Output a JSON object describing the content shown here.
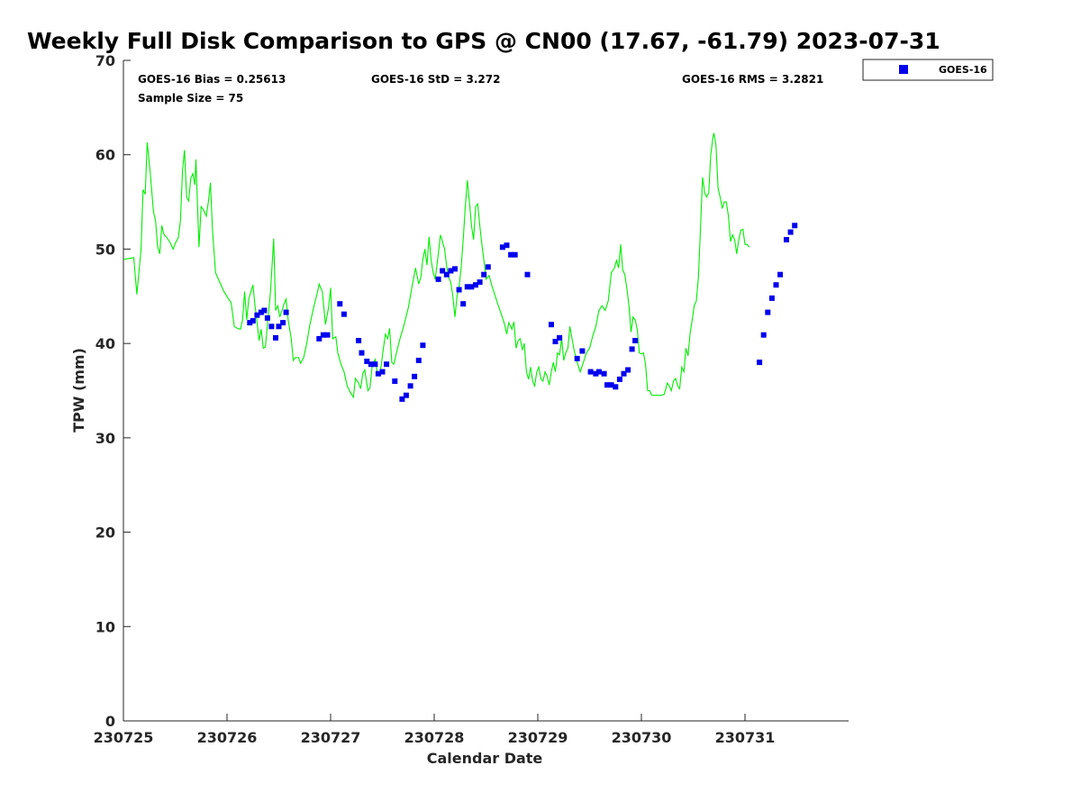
{
  "chart_data": {
    "type": "scatter",
    "title": "Weekly Full Disk Comparison to GPS @ CN00 (17.67, -61.79) 2023-07-31",
    "xlabel": "Calendar Date",
    "ylabel": "TPW (mm)",
    "xlim": [
      0,
      7
    ],
    "ylim": [
      0,
      70
    ],
    "x_ticks": [
      {
        "v": 0,
        "label": "230725"
      },
      {
        "v": 1,
        "label": "230726"
      },
      {
        "v": 2,
        "label": "230727"
      },
      {
        "v": 3,
        "label": "230728"
      },
      {
        "v": 4,
        "label": "230729"
      },
      {
        "v": 5,
        "label": "230730"
      },
      {
        "v": 6,
        "label": "230731"
      }
    ],
    "y_ticks": [
      {
        "v": 0,
        "label": "0"
      },
      {
        "v": 10,
        "label": "10"
      },
      {
        "v": 20,
        "label": "20"
      },
      {
        "v": 30,
        "label": "30"
      },
      {
        "v": 40,
        "label": "40"
      },
      {
        "v": 50,
        "label": "50"
      },
      {
        "v": 60,
        "label": "60"
      },
      {
        "v": 70,
        "label": "70"
      }
    ],
    "stats": {
      "bias": "GOES-16 Bias = 0.25613",
      "std": "GOES-16 StD = 3.272",
      "rms": "GOES-16 RMS = 3.2821",
      "sample": "Sample Size = 75"
    },
    "legend": {
      "entry": "GOES-16",
      "placement": "top-right outside"
    },
    "colors": {
      "gps_line": "#00ee00",
      "goes_markers": "#0000ee"
    },
    "grid": false,
    "gps_line": [
      [
        0.0,
        48.9
      ],
      [
        0.1,
        49.1
      ],
      [
        0.13,
        45.2
      ],
      [
        0.17,
        50.0
      ],
      [
        0.19,
        56.3
      ],
      [
        0.21,
        55.8
      ],
      [
        0.23,
        61.3
      ],
      [
        0.26,
        58.0
      ],
      [
        0.29,
        54.0
      ],
      [
        0.31,
        53.0
      ],
      [
        0.33,
        50.3
      ],
      [
        0.35,
        49.5
      ],
      [
        0.37,
        52.5
      ],
      [
        0.39,
        51.6
      ],
      [
        0.42,
        51.2
      ],
      [
        0.45,
        50.7
      ],
      [
        0.48,
        50.0
      ],
      [
        0.5,
        50.6
      ],
      [
        0.53,
        51.2
      ],
      [
        0.55,
        53.0
      ],
      [
        0.57,
        58.3
      ],
      [
        0.59,
        60.5
      ],
      [
        0.61,
        55.5
      ],
      [
        0.63,
        55.1
      ],
      [
        0.65,
        57.5
      ],
      [
        0.67,
        58.0
      ],
      [
        0.69,
        56.8
      ],
      [
        0.7,
        59.5
      ],
      [
        0.73,
        50.2
      ],
      [
        0.75,
        54.5
      ],
      [
        0.77,
        54.2
      ],
      [
        0.8,
        53.5
      ],
      [
        0.82,
        55.0
      ],
      [
        0.84,
        57.0
      ],
      [
        0.86,
        52.0
      ],
      [
        0.89,
        47.5
      ],
      [
        0.93,
        46.5
      ],
      [
        0.97,
        45.5
      ],
      [
        1.01,
        44.8
      ],
      [
        1.04,
        44.3
      ],
      [
        1.07,
        41.8
      ],
      [
        1.1,
        41.6
      ],
      [
        1.13,
        41.5
      ],
      [
        1.15,
        42.5
      ],
      [
        1.17,
        45.5
      ],
      [
        1.19,
        42.5
      ],
      [
        1.21,
        44.7
      ],
      [
        1.25,
        46.2
      ],
      [
        1.27,
        44.0
      ],
      [
        1.29,
        42.2
      ],
      [
        1.31,
        40.3
      ],
      [
        1.33,
        41.5
      ],
      [
        1.35,
        39.5
      ],
      [
        1.37,
        39.6
      ],
      [
        1.39,
        42.0
      ],
      [
        1.42,
        45.5
      ],
      [
        1.45,
        51.1
      ],
      [
        1.47,
        43.5
      ],
      [
        1.49,
        44.0
      ],
      [
        1.51,
        42.8
      ],
      [
        1.53,
        43.5
      ],
      [
        1.55,
        44.2
      ],
      [
        1.57,
        44.7
      ],
      [
        1.59,
        42.5
      ],
      [
        1.62,
        40.5
      ],
      [
        1.64,
        38.2
      ],
      [
        1.66,
        38.5
      ],
      [
        1.69,
        38.5
      ],
      [
        1.71,
        37.9
      ],
      [
        1.74,
        38.5
      ],
      [
        1.77,
        40.0
      ],
      [
        1.8,
        42.0
      ],
      [
        1.84,
        44.0
      ],
      [
        1.87,
        45.3
      ],
      [
        1.89,
        46.3
      ],
      [
        1.92,
        45.5
      ],
      [
        1.95,
        42.0
      ],
      [
        1.98,
        43.8
      ],
      [
        2.0,
        45.9
      ],
      [
        2.02,
        40.5
      ],
      [
        2.05,
        40.7
      ],
      [
        2.07,
        39.0
      ],
      [
        2.1,
        37.8
      ],
      [
        2.13,
        37.0
      ],
      [
        2.16,
        35.5
      ],
      [
        2.19,
        34.8
      ],
      [
        2.22,
        34.3
      ],
      [
        2.24,
        36.3
      ],
      [
        2.27,
        35.8
      ],
      [
        2.29,
        35.2
      ],
      [
        2.31,
        36.8
      ],
      [
        2.33,
        37.2
      ],
      [
        2.36,
        35.0
      ],
      [
        2.38,
        35.3
      ],
      [
        2.4,
        37.5
      ],
      [
        2.43,
        38.3
      ],
      [
        2.45,
        37.0
      ],
      [
        2.47,
        36.6
      ],
      [
        2.49,
        37.8
      ],
      [
        2.51,
        39.5
      ],
      [
        2.53,
        41.0
      ],
      [
        2.55,
        40.5
      ],
      [
        2.57,
        41.6
      ],
      [
        2.59,
        38.0
      ],
      [
        2.61,
        37.8
      ],
      [
        2.64,
        39.2
      ],
      [
        2.67,
        40.5
      ],
      [
        2.71,
        42.0
      ],
      [
        2.75,
        43.8
      ],
      [
        2.79,
        46.3
      ],
      [
        2.82,
        48.0
      ],
      [
        2.85,
        46.3
      ],
      [
        2.87,
        47.0
      ],
      [
        2.89,
        48.9
      ],
      [
        2.91,
        50.0
      ],
      [
        2.93,
        48.3
      ],
      [
        2.95,
        51.3
      ],
      [
        2.97,
        48.8
      ],
      [
        2.99,
        47.5
      ],
      [
        3.01,
        46.8
      ],
      [
        3.04,
        49.5
      ],
      [
        3.06,
        51.5
      ],
      [
        3.08,
        50.8
      ],
      [
        3.1,
        50.0
      ],
      [
        3.12,
        48.2
      ],
      [
        3.14,
        47.0
      ],
      [
        3.16,
        46.5
      ],
      [
        3.18,
        45.0
      ],
      [
        3.2,
        42.8
      ],
      [
        3.22,
        45.0
      ],
      [
        3.24,
        46.0
      ],
      [
        3.26,
        48.0
      ],
      [
        3.28,
        51.0
      ],
      [
        3.3,
        54.5
      ],
      [
        3.32,
        57.3
      ],
      [
        3.34,
        55.0
      ],
      [
        3.36,
        52.5
      ],
      [
        3.38,
        51.0
      ],
      [
        3.4,
        54.5
      ],
      [
        3.42,
        54.8
      ],
      [
        3.44,
        52.5
      ],
      [
        3.46,
        50.5
      ],
      [
        3.48,
        48.8
      ],
      [
        3.5,
        46.8
      ],
      [
        3.53,
        47.2
      ],
      [
        3.56,
        46.0
      ],
      [
        3.59,
        45.0
      ],
      [
        3.62,
        44.0
      ],
      [
        3.65,
        43.0
      ],
      [
        3.68,
        42.0
      ],
      [
        3.7,
        41.0
      ],
      [
        3.72,
        42.2
      ],
      [
        3.75,
        41.5
      ],
      [
        3.77,
        42.3
      ],
      [
        3.79,
        39.5
      ],
      [
        3.81,
        40.3
      ],
      [
        3.83,
        40.5
      ],
      [
        3.85,
        39.3
      ],
      [
        3.87,
        40.0
      ],
      [
        3.89,
        37.0
      ],
      [
        3.91,
        36.2
      ],
      [
        3.93,
        37.5
      ],
      [
        3.95,
        36.0
      ],
      [
        3.97,
        35.5
      ],
      [
        3.99,
        37.0
      ],
      [
        4.01,
        37.5
      ],
      [
        4.03,
        36.2
      ],
      [
        4.05,
        36.0
      ],
      [
        4.07,
        37.0
      ],
      [
        4.09,
        36.5
      ],
      [
        4.11,
        35.6
      ],
      [
        4.13,
        37.0
      ],
      [
        4.15,
        38.0
      ],
      [
        4.17,
        37.0
      ],
      [
        4.19,
        39.0
      ],
      [
        4.21,
        38.8
      ],
      [
        4.23,
        40.5
      ],
      [
        4.25,
        38.2
      ],
      [
        4.27,
        39.0
      ],
      [
        4.29,
        39.5
      ],
      [
        4.31,
        41.8
      ],
      [
        4.33,
        40.5
      ],
      [
        4.35,
        39.3
      ],
      [
        4.38,
        38.0
      ],
      [
        4.41,
        37.0
      ],
      [
        4.44,
        38.0
      ],
      [
        4.47,
        39.0
      ],
      [
        4.5,
        39.5
      ],
      [
        4.53,
        40.8
      ],
      [
        4.56,
        41.8
      ],
      [
        4.59,
        43.5
      ],
      [
        4.62,
        44.0
      ],
      [
        4.65,
        43.5
      ],
      [
        4.68,
        44.5
      ],
      [
        4.71,
        47.5
      ],
      [
        4.74,
        48.0
      ],
      [
        4.76,
        48.8
      ],
      [
        4.78,
        48.0
      ],
      [
        4.8,
        50.5
      ],
      [
        4.82,
        47.8
      ],
      [
        4.84,
        47.3
      ],
      [
        4.86,
        45.8
      ],
      [
        4.88,
        44.0
      ],
      [
        4.9,
        41.2
      ],
      [
        4.92,
        42.8
      ],
      [
        4.94,
        42.5
      ],
      [
        4.96,
        41.5
      ],
      [
        4.98,
        39.0
      ],
      [
        5.0,
        38.9
      ],
      [
        5.02,
        39.0
      ],
      [
        5.04,
        37.8
      ],
      [
        5.06,
        35.0
      ],
      [
        5.08,
        35.0
      ],
      [
        5.1,
        34.5
      ],
      [
        5.13,
        34.5
      ],
      [
        5.16,
        34.5
      ],
      [
        5.19,
        34.5
      ],
      [
        5.22,
        34.6
      ],
      [
        5.25,
        35.8
      ],
      [
        5.27,
        35.5
      ],
      [
        5.29,
        35.0
      ],
      [
        5.31,
        36.0
      ],
      [
        5.33,
        36.3
      ],
      [
        5.35,
        35.5
      ],
      [
        5.37,
        35.2
      ],
      [
        5.39,
        37.5
      ],
      [
        5.41,
        37.0
      ],
      [
        5.43,
        39.5
      ],
      [
        5.45,
        38.7
      ],
      [
        5.47,
        41.0
      ],
      [
        5.49,
        42.5
      ],
      [
        5.51,
        44.0
      ],
      [
        5.53,
        44.5
      ],
      [
        5.55,
        47.0
      ],
      [
        5.57,
        52.0
      ],
      [
        5.59,
        57.6
      ],
      [
        5.61,
        56.0
      ],
      [
        5.63,
        55.5
      ],
      [
        5.65,
        56.0
      ],
      [
        5.67,
        60.0
      ],
      [
        5.69,
        61.8
      ],
      [
        5.7,
        62.3
      ],
      [
        5.72,
        61.0
      ],
      [
        5.74,
        56.5
      ],
      [
        5.76,
        55.5
      ],
      [
        5.78,
        54.3
      ],
      [
        5.8,
        55.0
      ],
      [
        5.82,
        55.0
      ],
      [
        5.84,
        53.5
      ],
      [
        5.86,
        50.8
      ],
      [
        5.88,
        51.5
      ],
      [
        5.9,
        51.0
      ],
      [
        5.92,
        49.5
      ],
      [
        5.94,
        51.0
      ],
      [
        5.96,
        52.0
      ],
      [
        5.98,
        52.1
      ],
      [
        6.0,
        50.5
      ],
      [
        6.02,
        50.5
      ],
      [
        6.04,
        50.2
      ]
    ],
    "goes_points": [
      [
        1.22,
        42.2
      ],
      [
        1.25,
        42.4
      ],
      [
        1.29,
        43.0
      ],
      [
        1.33,
        43.3
      ],
      [
        1.36,
        43.5
      ],
      [
        1.39,
        42.7
      ],
      [
        1.43,
        41.8
      ],
      [
        1.47,
        40.6
      ],
      [
        1.5,
        41.8
      ],
      [
        1.54,
        42.2
      ],
      [
        1.57,
        43.3
      ],
      [
        1.89,
        40.5
      ],
      [
        1.93,
        40.9
      ],
      [
        1.97,
        40.9
      ],
      [
        2.09,
        44.2
      ],
      [
        2.13,
        43.1
      ],
      [
        2.27,
        40.3
      ],
      [
        2.3,
        39.0
      ],
      [
        2.35,
        38.1
      ],
      [
        2.39,
        37.8
      ],
      [
        2.43,
        37.8
      ],
      [
        2.46,
        36.8
      ],
      [
        2.5,
        37.0
      ],
      [
        2.54,
        37.8
      ],
      [
        2.62,
        36.0
      ],
      [
        2.69,
        34.1
      ],
      [
        2.73,
        34.5
      ],
      [
        2.77,
        35.5
      ],
      [
        2.81,
        36.5
      ],
      [
        2.85,
        38.2
      ],
      [
        2.89,
        39.8
      ],
      [
        3.04,
        46.8
      ],
      [
        3.08,
        47.7
      ],
      [
        3.12,
        47.3
      ],
      [
        3.16,
        47.7
      ],
      [
        3.2,
        47.9
      ],
      [
        3.24,
        45.7
      ],
      [
        3.28,
        44.2
      ],
      [
        3.32,
        46.0
      ],
      [
        3.36,
        46.0
      ],
      [
        3.4,
        46.2
      ],
      [
        3.44,
        46.5
      ],
      [
        3.48,
        47.3
      ],
      [
        3.52,
        48.1
      ],
      [
        3.66,
        50.2
      ],
      [
        3.7,
        50.4
      ],
      [
        3.74,
        49.4
      ],
      [
        3.78,
        49.4
      ],
      [
        3.9,
        47.3
      ],
      [
        4.13,
        42.0
      ],
      [
        4.17,
        40.2
      ],
      [
        4.21,
        40.6
      ],
      [
        4.38,
        38.4
      ],
      [
        4.43,
        39.2
      ],
      [
        4.51,
        37.0
      ],
      [
        4.56,
        36.8
      ],
      [
        4.59,
        37.0
      ],
      [
        4.64,
        36.8
      ],
      [
        4.67,
        35.6
      ],
      [
        4.71,
        35.6
      ],
      [
        4.75,
        35.4
      ],
      [
        4.79,
        36.2
      ],
      [
        4.83,
        36.8
      ],
      [
        4.87,
        37.2
      ],
      [
        4.91,
        39.4
      ],
      [
        4.94,
        40.3
      ],
      [
        6.14,
        38.0
      ],
      [
        6.18,
        40.9
      ],
      [
        6.22,
        43.3
      ],
      [
        6.26,
        44.8
      ],
      [
        6.3,
        46.2
      ],
      [
        6.34,
        47.3
      ],
      [
        6.4,
        51.0
      ],
      [
        6.44,
        51.8
      ],
      [
        6.48,
        52.5
      ]
    ]
  }
}
